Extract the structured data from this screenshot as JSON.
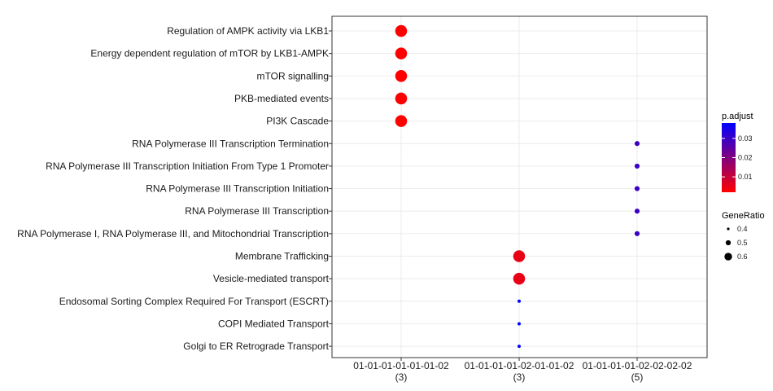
{
  "chart_data": {
    "type": "scatter",
    "title": "",
    "xlabel": "",
    "ylabel": "",
    "grid": true,
    "legend_placement": "right",
    "categories_x": [
      {
        "line1": "01-01-01-01-01-01-02",
        "line2": "(3)"
      },
      {
        "line1": "01-01-01-01-02-01-01-02",
        "line2": "(3)"
      },
      {
        "line1": "01-01-01-01-02-02-02-02",
        "line2": "(5)"
      }
    ],
    "categories_y": [
      "Regulation of AMPK activity via LKB1",
      "Energy dependent regulation of mTOR by LKB1-AMPK",
      "mTOR signalling",
      "PKB-mediated events",
      "PI3K Cascade",
      "RNA Polymerase III Transcription Termination",
      "RNA Polymerase III Transcription Initiation From Type 1 Promoter",
      "RNA Polymerase III Transcription Initiation",
      "RNA Polymerase III Transcription",
      "RNA Polymerase I, RNA Polymerase III, and Mitochondrial Transcription",
      "Membrane Trafficking",
      "Vesicle-mediated transport",
      "Endosomal Sorting Complex Required For Transport (ESCRT)",
      "COPI Mediated Transport",
      "Golgi to ER Retrograde Transport"
    ],
    "points": [
      {
        "x": 0,
        "y": 0,
        "gene_ratio": 0.67,
        "p_adjust": 0.002
      },
      {
        "x": 0,
        "y": 1,
        "gene_ratio": 0.67,
        "p_adjust": 0.002
      },
      {
        "x": 0,
        "y": 2,
        "gene_ratio": 0.67,
        "p_adjust": 0.002
      },
      {
        "x": 0,
        "y": 3,
        "gene_ratio": 0.67,
        "p_adjust": 0.002
      },
      {
        "x": 0,
        "y": 4,
        "gene_ratio": 0.67,
        "p_adjust": 0.002
      },
      {
        "x": 2,
        "y": 5,
        "gene_ratio": 0.4,
        "p_adjust": 0.03
      },
      {
        "x": 2,
        "y": 6,
        "gene_ratio": 0.4,
        "p_adjust": 0.03
      },
      {
        "x": 2,
        "y": 7,
        "gene_ratio": 0.4,
        "p_adjust": 0.03
      },
      {
        "x": 2,
        "y": 8,
        "gene_ratio": 0.4,
        "p_adjust": 0.03
      },
      {
        "x": 2,
        "y": 9,
        "gene_ratio": 0.4,
        "p_adjust": 0.03
      },
      {
        "x": 1,
        "y": 10,
        "gene_ratio": 0.67,
        "p_adjust": 0.005
      },
      {
        "x": 1,
        "y": 11,
        "gene_ratio": 0.67,
        "p_adjust": 0.005
      },
      {
        "x": 1,
        "y": 12,
        "gene_ratio": 0.33,
        "p_adjust": 0.038
      },
      {
        "x": 1,
        "y": 13,
        "gene_ratio": 0.33,
        "p_adjust": 0.038
      },
      {
        "x": 1,
        "y": 14,
        "gene_ratio": 0.33,
        "p_adjust": 0.038
      }
    ],
    "color_legend": {
      "title": "p.adjust",
      "ticks": [
        "0.01",
        "0.02",
        "0.03"
      ],
      "tick_values": [
        0.01,
        0.02,
        0.03
      ],
      "range": [
        0.002,
        0.038
      ],
      "low_color": "#ff0000",
      "high_color": "#0000ff"
    },
    "size_legend": {
      "title": "GeneRatio",
      "labels": [
        "0.4",
        "0.5",
        "0.6"
      ],
      "values": [
        0.4,
        0.5,
        0.6
      ]
    }
  }
}
